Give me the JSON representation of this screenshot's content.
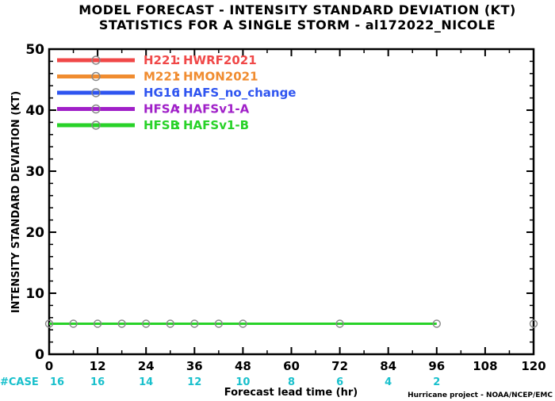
{
  "colors": {
    "H221": "#f04848",
    "M221": "#f08c30",
    "HG16": "#2f55f0",
    "HFSA": "#a020c8",
    "HFSB": "#28d228",
    "case": "#19c0cc",
    "marker_on_line": "#888888"
  },
  "chart_data": {
    "type": "line",
    "title": "MODEL FORECAST - INTENSITY STANDARD DEVIATION (KT)",
    "subtitle": "STATISTICS FOR A SINGLE STORM - al172022_NICOLE",
    "xlabel": "Forecast lead time (hr)",
    "ylabel": "INTENSITY STANDARD DEVIATION (KT)",
    "xlim": [
      0,
      120
    ],
    "ylim": [
      0,
      50
    ],
    "xticks": [
      0,
      12,
      24,
      36,
      48,
      60,
      72,
      84,
      96,
      108,
      120
    ],
    "yticks": [
      0,
      10,
      20,
      30,
      40,
      50
    ],
    "grid": false,
    "legend_position": "top-left",
    "series": [
      {
        "name": "H221",
        "label": "HWRF2021",
        "color_key": "H221",
        "x": [],
        "y": []
      },
      {
        "name": "M221",
        "label": "HMON2021",
        "color_key": "M221",
        "x": [],
        "y": []
      },
      {
        "name": "HG16",
        "label": "HAFS_no_change",
        "color_key": "HG16",
        "x": [],
        "y": []
      },
      {
        "name": "HFSA",
        "label": "HAFSv1-A",
        "color_key": "HFSA",
        "x": [],
        "y": []
      },
      {
        "name": "HFSB",
        "label": "HAFSv1-B",
        "color_key": "HFSB",
        "x": [
          0,
          6,
          12,
          18,
          24,
          30,
          36,
          42,
          48,
          72,
          96
        ],
        "y": [
          5,
          5,
          5,
          5,
          5,
          5,
          5,
          5,
          5,
          5,
          5
        ]
      }
    ],
    "extra_markers": [
      {
        "x": 120,
        "y": 5
      }
    ],
    "cases": {
      "label": "#CASE",
      "x": [
        0,
        12,
        24,
        36,
        48,
        60,
        72,
        84,
        96
      ],
      "values": [
        "16",
        "16",
        "14",
        "12",
        "10",
        "8",
        "6",
        "4",
        "2"
      ]
    }
  },
  "credit": "Hurricane project - NOAA/NCEP/EMC"
}
